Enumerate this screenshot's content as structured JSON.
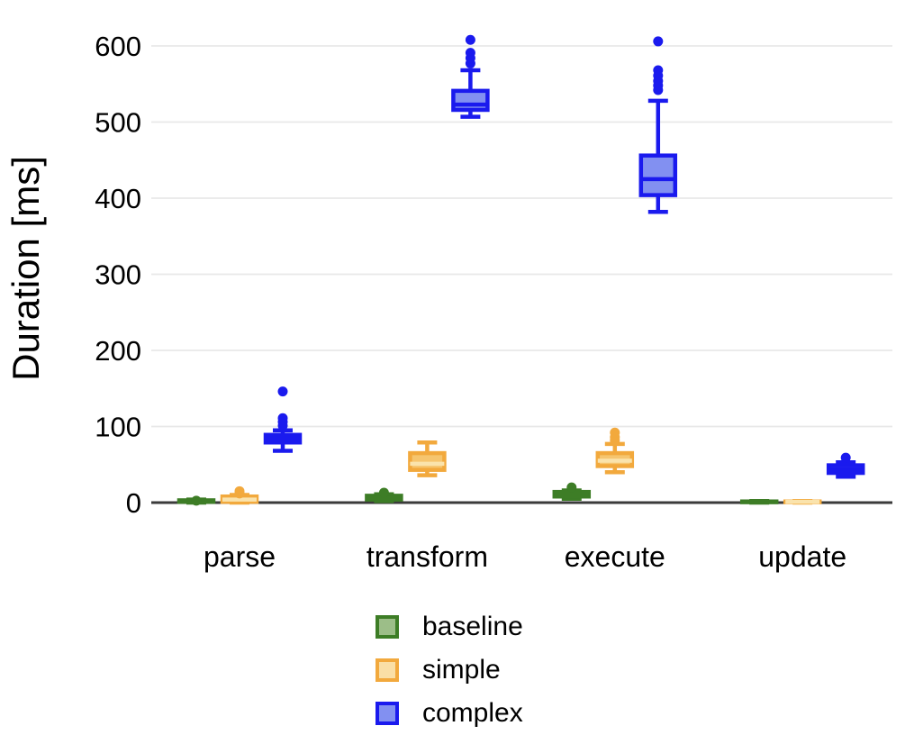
{
  "chart_data": {
    "type": "boxplot",
    "title": "",
    "ylabel": "Duration [ms]",
    "xlabel": "",
    "ylim": [
      0,
      620
    ],
    "yticks": [
      0,
      100,
      200,
      300,
      400,
      500,
      600
    ],
    "grid": "horizontal-light",
    "legend_position": "bottom",
    "unit": "ms",
    "categories": [
      "parse",
      "transform",
      "execute",
      "update"
    ],
    "colors": {
      "background": "#ffffff",
      "gridline": "#e8e8e8",
      "axis_line": "#3b3b3b",
      "text": "#000000"
    },
    "series": [
      {
        "name": "baseline",
        "stroke": "#3D7D26",
        "fill": "#9CBE88",
        "median_color": "#3D7D26",
        "boxes": [
          {
            "category": "parse",
            "low": 0,
            "q1": 1,
            "median": 2,
            "q3": 3,
            "high": 4,
            "outliers": [
              2.5
            ]
          },
          {
            "category": "transform",
            "low": 2,
            "q1": 4,
            "median": 6,
            "q3": 9,
            "high": 11,
            "outliers": [
              13
            ]
          },
          {
            "category": "execute",
            "low": 5,
            "q1": 8,
            "median": 11,
            "q3": 14,
            "high": 16,
            "outliers": [
              20
            ]
          },
          {
            "category": "update",
            "low": 0,
            "q1": 0.5,
            "median": 1,
            "q3": 1.5,
            "high": 2,
            "outliers": []
          }
        ]
      },
      {
        "name": "simple",
        "stroke": "#F2A93D",
        "fill": "#F6C56E",
        "median_color": "#FAE3AC",
        "legend_fill": "#FADFA6",
        "boxes": [
          {
            "category": "parse",
            "low": 0,
            "q1": 1,
            "median": 4,
            "q3": 8,
            "high": 10,
            "outliers": [
              12,
              15
            ]
          },
          {
            "category": "transform",
            "low": 36,
            "q1": 43,
            "median": 51,
            "q3": 65,
            "high": 79,
            "outliers": []
          },
          {
            "category": "execute",
            "low": 40,
            "q1": 48,
            "median": 55,
            "q3": 65,
            "high": 77,
            "outliers": [
              82,
              86,
              92
            ]
          },
          {
            "category": "update",
            "low": 0,
            "q1": 0.5,
            "median": 1,
            "q3": 1.5,
            "high": 2,
            "outliers": []
          }
        ]
      },
      {
        "name": "complex",
        "stroke": "#1A1AEE",
        "fill": "#8290F1",
        "median_color": "#1A1AEE",
        "boxes": [
          {
            "category": "parse",
            "low": 68,
            "q1": 79,
            "median": 84,
            "q3": 89,
            "high": 95,
            "outliers": [
              101,
              106,
              111,
              146
            ]
          },
          {
            "category": "transform",
            "low": 507,
            "q1": 516,
            "median": 523,
            "q3": 541,
            "high": 568,
            "outliers": [
              577,
              584,
              591,
              608
            ]
          },
          {
            "category": "execute",
            "low": 382,
            "q1": 404,
            "median": 425,
            "q3": 456,
            "high": 528,
            "outliers": [
              542,
              548,
              554,
              561,
              568,
              606
            ]
          },
          {
            "category": "update",
            "low": 34,
            "q1": 39,
            "median": 44,
            "q3": 49,
            "high": 53,
            "outliers": [
              59
            ]
          }
        ]
      }
    ]
  }
}
